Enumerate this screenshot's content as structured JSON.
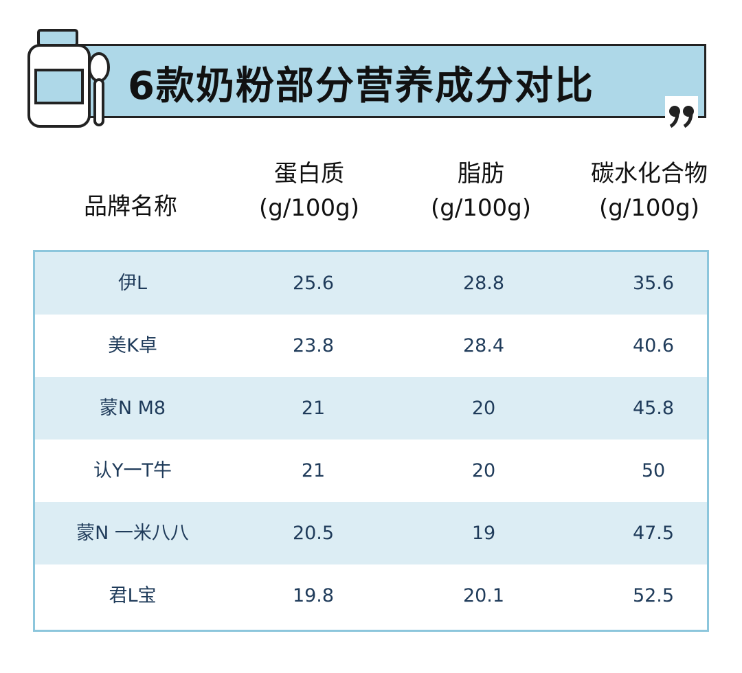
{
  "title": "6款奶粉部分营养成分对比",
  "headers": {
    "brand": "品牌名称",
    "protein": [
      "蛋白质",
      "(g/100g)"
    ],
    "fat": [
      "脂肪",
      "(g/100g)"
    ],
    "carb": [
      "碳水化合物",
      "(g/100g)"
    ]
  },
  "rows": [
    {
      "brand": "伊L",
      "protein": "25.6",
      "fat": "28.8",
      "carb": "35.6"
    },
    {
      "brand": "美K卓",
      "protein": "23.8",
      "fat": "28.4",
      "carb": "40.6"
    },
    {
      "brand": "蒙N M8",
      "protein": "21",
      "fat": "20",
      "carb": "45.8"
    },
    {
      "brand": "认Y一T牛",
      "protein": "21",
      "fat": "20",
      "carb": "50"
    },
    {
      "brand": "蒙N 一米八八",
      "protein": "20.5",
      "fat": "19",
      "carb": "47.5"
    },
    {
      "brand": "君L宝",
      "protein": "19.8",
      "fat": "20.1",
      "carb": "52.5"
    }
  ],
  "colors": {
    "banner": "#aed8e8",
    "row_shade": "#dcedf4",
    "table_border": "#8cc6dc",
    "cell_text": "#1f3b5a"
  }
}
